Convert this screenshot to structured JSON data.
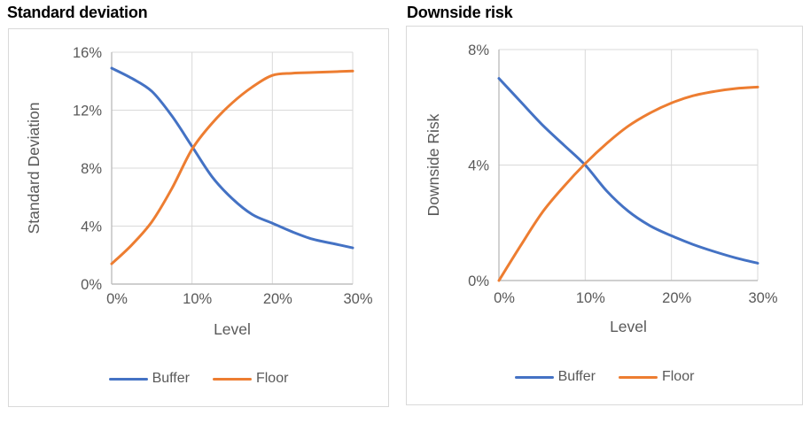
{
  "page": {
    "background": "#ffffff"
  },
  "colors": {
    "gridline": "#d9d9d9",
    "axis_line": "#bfbfbf",
    "panel_border": "#d9d9d9",
    "tick_text": "#595959",
    "axis_title_text": "#595959",
    "legend_text": "#595959",
    "chart_title_text": "#000000"
  },
  "chart_data": [
    {
      "type": "line",
      "title": "Standard deviation",
      "xlabel": "Level",
      "ylabel": "Standard Deviation",
      "xlim": [
        0,
        30
      ],
      "ylim": [
        0,
        16
      ],
      "grid": true,
      "legend_position": "bottom",
      "smooth": true,
      "x": [
        0,
        2.5,
        5,
        7.5,
        10,
        12.5,
        15,
        17.5,
        20,
        22.5,
        25,
        27.5,
        30
      ],
      "series": [
        {
          "name": "Buffer",
          "color": "#4472c4",
          "values": [
            14.9,
            14.2,
            13.3,
            11.6,
            9.5,
            7.4,
            5.9,
            4.8,
            4.2,
            3.6,
            3.1,
            2.8,
            2.5
          ]
        },
        {
          "name": "Floor",
          "color": "#ed7d31",
          "values": [
            1.4,
            2.7,
            4.3,
            6.6,
            9.3,
            11.1,
            12.5,
            13.6,
            14.4,
            14.55,
            14.6,
            14.65,
            14.7
          ]
        }
      ],
      "xticks": {
        "values": [
          0,
          10,
          20,
          30
        ],
        "labels": [
          "0%",
          "10%",
          "20%",
          "30%"
        ]
      },
      "yticks": {
        "values": [
          0,
          4,
          8,
          12,
          16
        ],
        "labels": [
          "0%",
          "4%",
          "8%",
          "12%",
          "16%"
        ]
      }
    },
    {
      "type": "line",
      "title": "Downside risk",
      "xlabel": "Level",
      "ylabel": "Downside Risk",
      "xlim": [
        0,
        30
      ],
      "ylim": [
        0,
        8
      ],
      "grid": true,
      "legend_position": "bottom",
      "smooth": true,
      "x": [
        0,
        2.5,
        5,
        7.5,
        10,
        12.5,
        15,
        17.5,
        20,
        22.5,
        25,
        27.5,
        30
      ],
      "series": [
        {
          "name": "Buffer",
          "color": "#4472c4",
          "values": [
            7.0,
            6.2,
            5.4,
            4.7,
            4.0,
            3.1,
            2.4,
            1.9,
            1.55,
            1.25,
            1.0,
            0.78,
            0.6
          ]
        },
        {
          "name": "Floor",
          "color": "#ed7d31",
          "values": [
            0,
            1.2,
            2.35,
            3.25,
            4.05,
            4.75,
            5.35,
            5.8,
            6.15,
            6.4,
            6.55,
            6.65,
            6.7
          ]
        }
      ],
      "xticks": {
        "values": [
          0,
          10,
          20,
          30
        ],
        "labels": [
          "0%",
          "10%",
          "20%",
          "30%"
        ]
      },
      "yticks": {
        "values": [
          0,
          4,
          8
        ],
        "labels": [
          "0%",
          "4%",
          "8%"
        ]
      }
    }
  ]
}
